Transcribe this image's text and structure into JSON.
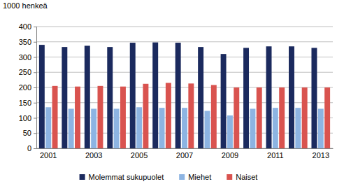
{
  "chart_data": {
    "type": "bar",
    "title": "1000 henkeä",
    "categories": [
      "2001",
      null,
      "2003",
      null,
      "2005",
      null,
      "2007",
      null,
      "2009",
      null,
      "2011",
      null,
      "2013"
    ],
    "series": [
      {
        "name": "Molemmat sukupuolet",
        "color": "#1b2a5e",
        "values": [
          340,
          333,
          337,
          333,
          347,
          348,
          347,
          333,
          310,
          330,
          335,
          335,
          330
        ]
      },
      {
        "name": "Miehet",
        "color": "#8db4e2",
        "values": [
          135,
          130,
          130,
          130,
          135,
          133,
          133,
          123,
          108,
          130,
          133,
          133,
          130
        ]
      },
      {
        "name": "Naiset",
        "color": "#d9534f",
        "values": [
          205,
          203,
          205,
          203,
          212,
          215,
          213,
          208,
          200,
          200,
          200,
          200,
          200
        ]
      }
    ],
    "ylim": [
      0,
      400
    ],
    "yticks": [
      0,
      50,
      100,
      150,
      200,
      250,
      300,
      350,
      400
    ],
    "grid": true,
    "legend": "bottom"
  }
}
